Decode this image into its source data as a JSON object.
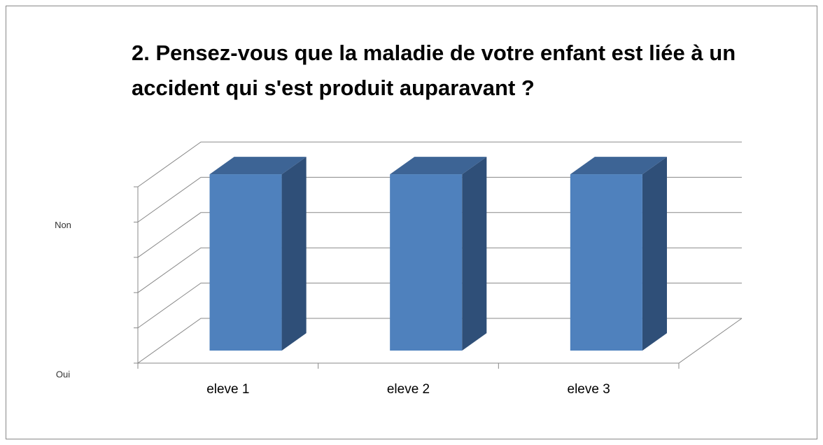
{
  "chart_data": {
    "type": "bar3d",
    "title": [
      "2. Pensez-vous que la maladie de votre enfant est liée à un",
      "accident qui s'est produit  auparavant ?"
    ],
    "categories": [
      "eleve 1",
      "eleve 2",
      "eleve 3"
    ],
    "values": [
      5,
      5,
      5
    ],
    "color": "#4f81bd",
    "ylim": [
      0,
      5
    ],
    "yticks": [
      {
        "value": 0,
        "label": "Oui"
      },
      {
        "value": 4,
        "label": "Non"
      }
    ],
    "gridlines": [
      0,
      1,
      2,
      3,
      4,
      5
    ],
    "grid": true
  }
}
